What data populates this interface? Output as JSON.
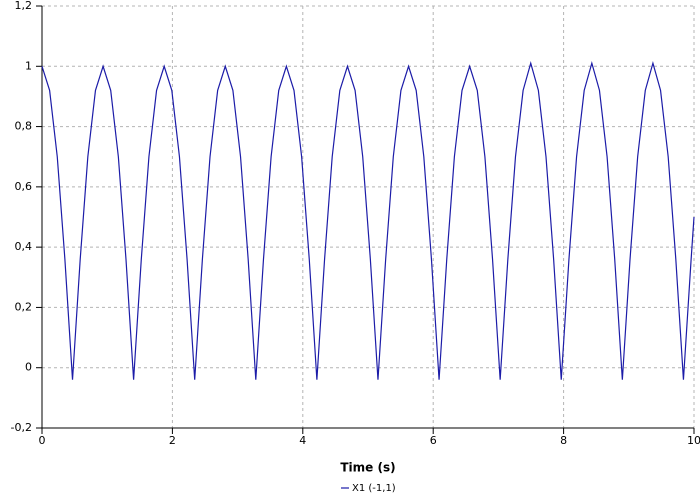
{
  "chart_data": {
    "type": "line",
    "x_label": "Time (s)",
    "xlim": [
      0,
      10
    ],
    "xticks": [
      0,
      2,
      4,
      6,
      8,
      10
    ],
    "ylim": [
      -0.2,
      1.2
    ],
    "yticks": [
      {
        "value": -0.2,
        "label": "-0,2"
      },
      0,
      {
        "value": 0.2,
        "label": "0,2"
      },
      {
        "value": 0.4,
        "label": "0,4"
      },
      {
        "value": 0.6,
        "label": "0,6"
      },
      {
        "value": 0.8,
        "label": "0,8"
      },
      1,
      {
        "value": 1.2,
        "label": "1,2"
      }
    ],
    "grid": true,
    "legend": "bottom",
    "x": [
      0,
      0.117,
      0.234,
      0.351,
      0.468,
      0.586,
      0.703,
      0.82,
      0.937,
      1.054,
      1.171,
      1.288,
      1.405,
      1.523,
      1.64,
      1.757,
      1.874,
      1.991,
      2.108,
      2.225,
      2.342,
      2.46,
      2.577,
      2.694,
      2.811,
      2.928,
      3.045,
      3.162,
      3.279,
      3.397,
      3.514,
      3.631,
      3.748,
      3.865,
      3.982,
      4.099,
      4.216,
      4.334,
      4.451,
      4.568,
      4.685,
      4.802,
      4.919,
      5.036,
      5.153,
      5.271,
      5.388,
      5.505,
      5.622,
      5.739,
      5.856,
      5.973,
      6.09,
      6.208,
      6.325,
      6.442,
      6.559,
      6.676,
      6.793,
      6.91,
      7.027,
      7.145,
      7.262,
      7.379,
      7.496,
      7.613,
      7.73,
      7.847,
      7.964,
      8.082,
      8.199,
      8.316,
      8.433,
      8.55,
      8.667,
      8.784,
      8.901,
      9.019,
      9.136,
      9.253,
      9.37,
      9.487,
      9.604,
      9.721,
      9.838,
      9.956,
      10
    ],
    "series": [
      {
        "name": "X1 (-1,1)",
        "color": "#1c1ca8",
        "values": [
          1,
          0.92,
          0.7,
          0.36,
          -0.04,
          0.36,
          0.7,
          0.92,
          1,
          0.92,
          0.7,
          0.36,
          -0.04,
          0.36,
          0.7,
          0.92,
          1,
          0.92,
          0.7,
          0.36,
          -0.04,
          0.36,
          0.7,
          0.92,
          1,
          0.92,
          0.7,
          0.36,
          -0.04,
          0.36,
          0.7,
          0.92,
          1,
          0.92,
          0.7,
          0.36,
          -0.04,
          0.36,
          0.7,
          0.92,
          1,
          0.92,
          0.7,
          0.36,
          -0.04,
          0.36,
          0.7,
          0.92,
          1,
          0.92,
          0.7,
          0.36,
          -0.04,
          0.36,
          0.7,
          0.92,
          1,
          0.92,
          0.7,
          0.36,
          -0.04,
          0.36,
          0.7,
          0.92,
          1.01,
          0.92,
          0.7,
          0.36,
          -0.04,
          0.36,
          0.7,
          0.92,
          1.01,
          0.92,
          0.7,
          0.36,
          -0.04,
          0.36,
          0.7,
          0.92,
          1.01,
          0.92,
          0.7,
          0.36,
          -0.04,
          0.36,
          0.5
        ]
      }
    ]
  }
}
